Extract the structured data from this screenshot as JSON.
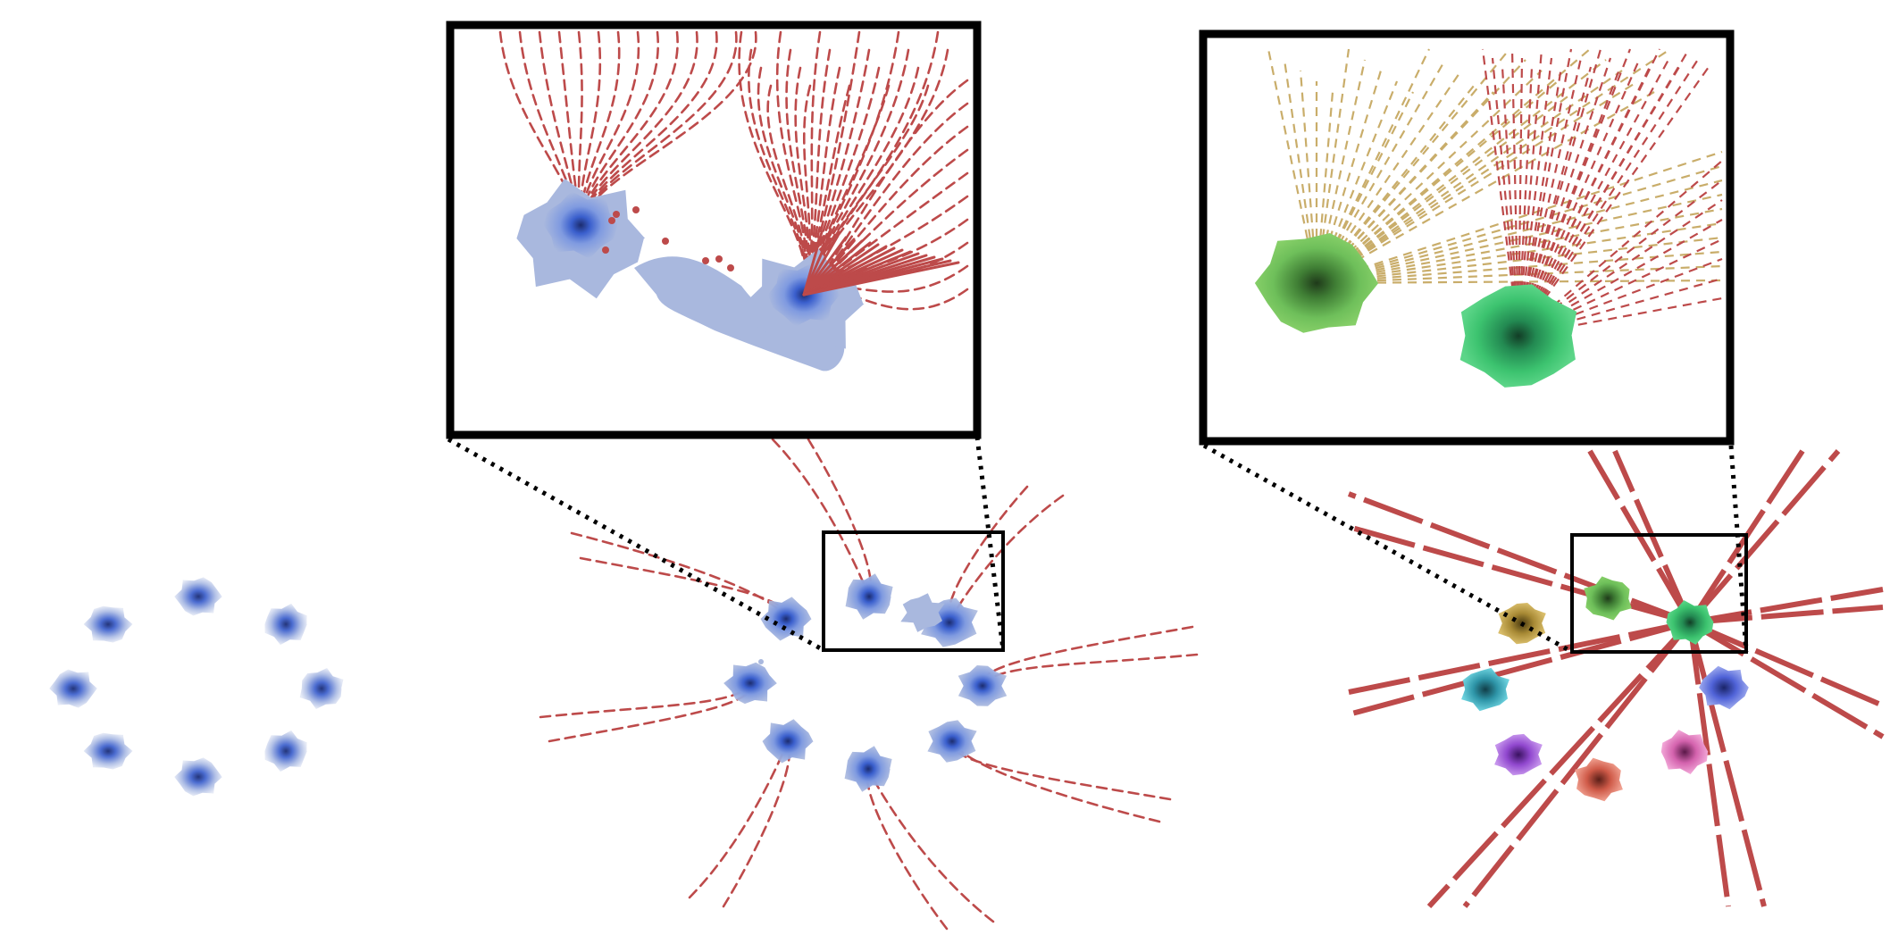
{
  "figure": {
    "panels": [
      {
        "id": "target-distribution",
        "description_visible": false
      },
      {
        "id": "flow-trajectories"
      },
      {
        "id": "straight-trajectories"
      }
    ]
  },
  "colors": {
    "density_blue": "#3a5fcd",
    "density_light_blue": "#a9b8de",
    "trajectory_red": "#bd4a4a",
    "trajectory_tan": "#c9ad6a",
    "mode_green_light": "#6ebf5a",
    "mode_green_dark": "#3cc36f",
    "mode_gold": "#c9a94b",
    "mode_teal": "#45b9c9",
    "mode_purple": "#b063e0",
    "mode_salmon": "#e07060",
    "mode_pink": "#e07ac0",
    "mode_indigo": "#6c7ee0",
    "frame": "#000000"
  },
  "icons": {
    "connector": "dotted-line",
    "inset": "magnifier-frame"
  }
}
